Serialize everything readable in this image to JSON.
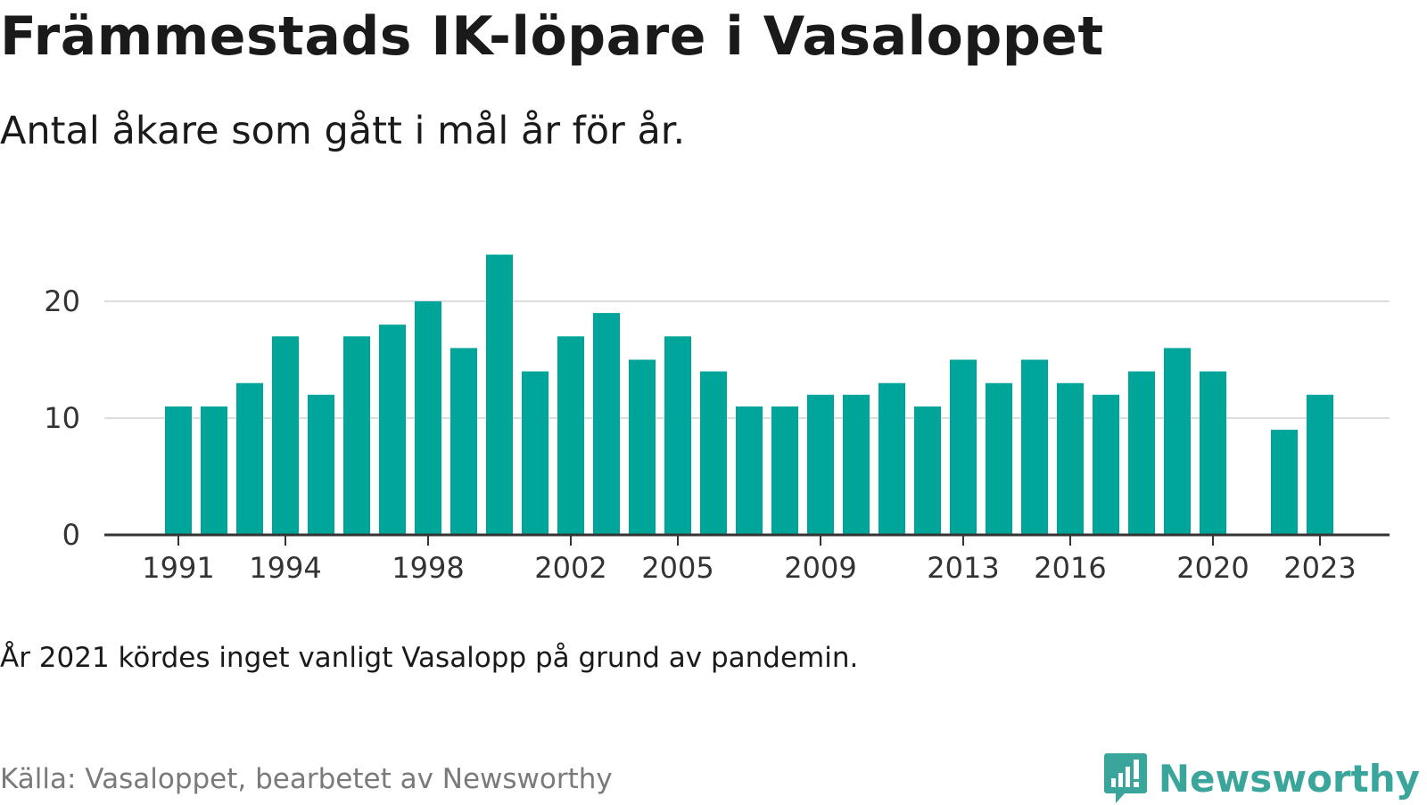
{
  "title": "Främmestads IK-löpare i Vasaloppet",
  "subtitle": "Antal åkare som gått i mål år för år.",
  "note": "År 2021 kördes inget vanligt Vasalopp på grund av pandemin.",
  "source": "Källa: Vasaloppet, bearbetet av Newsworthy",
  "logo_text": "Newsworthy",
  "colors": {
    "bar": "#00a59a",
    "grid": "#dddddd",
    "axis": "#333333",
    "logo": "#3aa59b"
  },
  "chart_data": {
    "type": "bar",
    "title": "Främmestads IK-löpare i Vasaloppet",
    "subtitle": "Antal åkare som gått i mål år för år.",
    "xlabel": "",
    "ylabel": "",
    "x": [
      1991,
      1992,
      1993,
      1994,
      1995,
      1996,
      1997,
      1998,
      1999,
      2000,
      2001,
      2002,
      2003,
      2004,
      2005,
      2006,
      2007,
      2008,
      2009,
      2010,
      2011,
      2012,
      2013,
      2014,
      2015,
      2016,
      2017,
      2018,
      2019,
      2020,
      2021,
      2022,
      2023
    ],
    "values": [
      11,
      11,
      13,
      17,
      12,
      17,
      18,
      20,
      16,
      24,
      14,
      17,
      19,
      15,
      17,
      14,
      11,
      11,
      12,
      12,
      13,
      11,
      15,
      13,
      15,
      13,
      12,
      14,
      16,
      14,
      null,
      9,
      12
    ],
    "xticks": [
      1991,
      1994,
      1998,
      2002,
      2005,
      2009,
      2013,
      2016,
      2020,
      2023
    ],
    "yticks": [
      0,
      10,
      20
    ],
    "ylim": [
      0,
      24
    ],
    "grid": true,
    "legend": "none"
  }
}
